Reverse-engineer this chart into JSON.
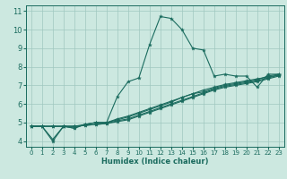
{
  "title": "",
  "xlabel": "Humidex (Indice chaleur)",
  "ylabel": "",
  "bg_color": "#cce8e0",
  "grid_color": "#a0c8bf",
  "line_color": "#1a6b5e",
  "xlim": [
    -0.5,
    23.5
  ],
  "ylim": [
    3.7,
    11.3
  ],
  "xticks": [
    0,
    1,
    2,
    3,
    4,
    5,
    6,
    7,
    8,
    9,
    10,
    11,
    12,
    13,
    14,
    15,
    16,
    17,
    18,
    19,
    20,
    21,
    22,
    23
  ],
  "yticks": [
    4,
    5,
    6,
    7,
    8,
    9,
    10,
    11
  ],
  "lines": [
    {
      "x": [
        0,
        1,
        2,
        3,
        4,
        5,
        6,
        7,
        8,
        9,
        10,
        11,
        12,
        13,
        14,
        15,
        16,
        17,
        18,
        19,
        20,
        21,
        22,
        23
      ],
      "y": [
        4.8,
        4.8,
        4.1,
        4.8,
        4.7,
        4.9,
        5.0,
        5.0,
        6.4,
        7.2,
        7.4,
        9.2,
        10.7,
        10.6,
        10.0,
        9.0,
        8.9,
        7.5,
        7.6,
        7.5,
        7.5,
        6.9,
        7.6,
        7.6
      ]
    },
    {
      "x": [
        0,
        1,
        2,
        3,
        4,
        5,
        6,
        7,
        8,
        9,
        10,
        11,
        12,
        13,
        14,
        15,
        16,
        17,
        18,
        19,
        20,
        21,
        22,
        23
      ],
      "y": [
        4.8,
        4.8,
        4.8,
        4.8,
        4.8,
        4.9,
        5.0,
        5.0,
        5.15,
        5.3,
        5.5,
        5.7,
        5.9,
        6.1,
        6.35,
        6.55,
        6.75,
        6.9,
        7.05,
        7.15,
        7.25,
        7.35,
        7.45,
        7.55
      ]
    },
    {
      "x": [
        0,
        1,
        2,
        3,
        4,
        5,
        6,
        7,
        8,
        9,
        10,
        11,
        12,
        13,
        14,
        15,
        16,
        17,
        18,
        19,
        20,
        21,
        22,
        23
      ],
      "y": [
        4.8,
        4.8,
        4.8,
        4.8,
        4.8,
        4.85,
        4.9,
        4.95,
        5.05,
        5.15,
        5.35,
        5.55,
        5.75,
        5.95,
        6.15,
        6.35,
        6.55,
        6.75,
        6.9,
        7.0,
        7.1,
        7.2,
        7.35,
        7.5
      ]
    },
    {
      "x": [
        0,
        1,
        2,
        3,
        4,
        5,
        6,
        7,
        8,
        9,
        10,
        11,
        12,
        13,
        14,
        15,
        16,
        17,
        18,
        19,
        20,
        21,
        22,
        23
      ],
      "y": [
        4.8,
        4.8,
        4.8,
        4.8,
        4.8,
        4.85,
        4.9,
        4.95,
        5.1,
        5.2,
        5.4,
        5.6,
        5.8,
        6.0,
        6.2,
        6.4,
        6.6,
        6.8,
        6.95,
        7.05,
        7.15,
        7.25,
        7.4,
        7.55
      ]
    },
    {
      "x": [
        0,
        1,
        2,
        3,
        4,
        5,
        6,
        7,
        8,
        9,
        10,
        11,
        12,
        13,
        14,
        15,
        16,
        17,
        18,
        19,
        20,
        21,
        22,
        23
      ],
      "y": [
        4.8,
        4.8,
        4.0,
        4.8,
        4.7,
        4.9,
        5.0,
        5.0,
        5.2,
        5.35,
        5.55,
        5.75,
        5.95,
        6.15,
        6.35,
        6.55,
        6.65,
        6.85,
        7.0,
        7.1,
        7.2,
        7.3,
        7.5,
        7.6
      ]
    }
  ]
}
